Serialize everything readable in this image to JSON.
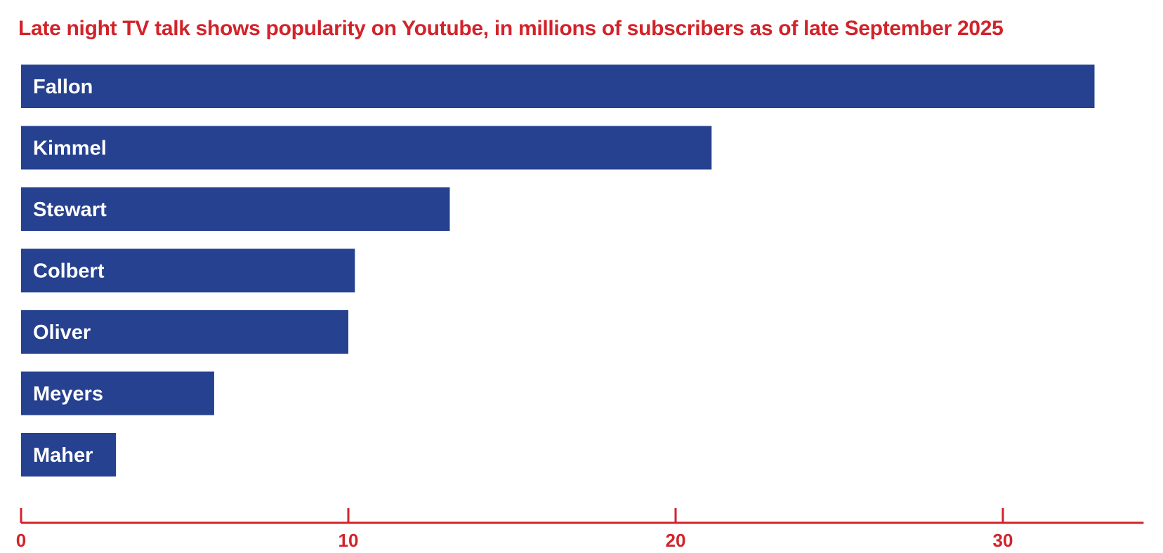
{
  "chart_data": {
    "type": "bar",
    "orientation": "horizontal",
    "title": "Late night TV talk shows popularity on Youtube, in millions of subscribers as of late September 2025",
    "categories": [
      "Fallon",
      "Kimmel",
      "Stewart",
      "Colbert",
      "Oliver",
      "Meyers",
      "Maher"
    ],
    "values": [
      32.8,
      21.1,
      13.1,
      10.2,
      10.0,
      5.9,
      2.9
    ],
    "xlim": [
      0,
      34.3
    ],
    "xticks": [
      0,
      10,
      20,
      30
    ],
    "xlabel": "",
    "ylabel": "",
    "grid": false,
    "legend": "none",
    "colors": {
      "bar": "#26418f",
      "title": "#d2232a",
      "axis": "#d2232a",
      "bar_label": "#ffffff"
    }
  }
}
